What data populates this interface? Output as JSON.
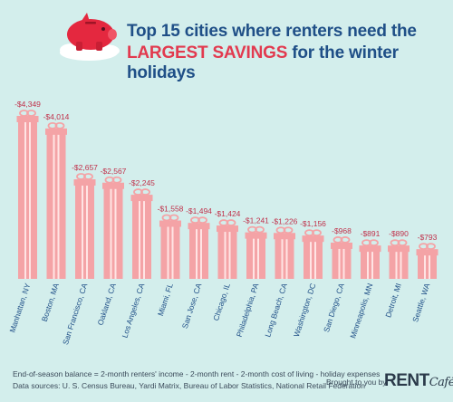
{
  "header": {
    "title_line1": "Top 15 cities where renters need the",
    "title_highlight": "LARGEST SAVINGS",
    "title_line2_rest": " for the winter holidays"
  },
  "colors": {
    "background": "#d3eeec",
    "gift": "#f4a3a6",
    "gift_stripe": "#ffe4e4",
    "value_label": "#c0304a",
    "title": "#1f4f87",
    "highlight": "#e23a4f"
  },
  "chart_data": {
    "type": "bar",
    "categories": [
      "Manhattan, NY",
      "Boston, MA",
      "San Francisco, CA",
      "Oakland, CA",
      "Los Angeles, CA",
      "Miami, FL",
      "San Jose, CA",
      "Chicago, IL",
      "Philadelphia, PA",
      "Long Beach, CA",
      "Washington, DC",
      "San Diego, CA",
      "Minneapolis, MN",
      "Detroit, MI",
      "Seattle, WA"
    ],
    "values": [
      -4349,
      -4014,
      -2657,
      -2567,
      -2245,
      -1558,
      -1494,
      -1424,
      -1241,
      -1226,
      -1156,
      -968,
      -891,
      -890,
      -793
    ],
    "value_labels": [
      "-$4,349",
      "-$4,014",
      "-$2,657",
      "-$2,567",
      "-$2,245",
      "-$1,558",
      "-$1,494",
      "-$1,424",
      "-$1,241",
      "-$1,226",
      "-$1,156",
      "-$968",
      "-$891",
      "-$890",
      "-$793"
    ],
    "title": "Top 15 cities where renters need the LARGEST SAVINGS for the winter holidays",
    "xlabel": "",
    "ylabel": "",
    "grid": false
  },
  "footer": {
    "note_line1": "End-of-season balance = 2-month renters' income - 2-month rent - 2-month cost of living - holiday expenses",
    "note_line2": "Data sources: U. S. Census Bureau, Yardi Matrix, Bureau of Labor Statistics, National Retail Federation",
    "brought_by": "Brought to you by",
    "logo_rent": "RENT",
    "logo_cafe": "Café"
  }
}
